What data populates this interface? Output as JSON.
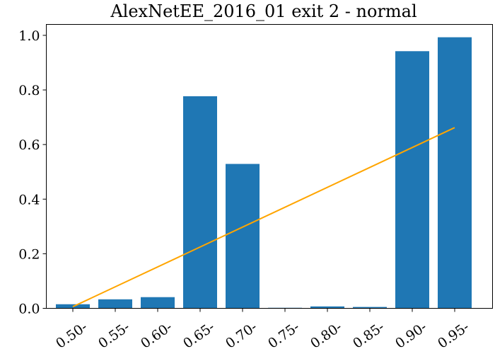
{
  "chart_data": {
    "type": "bar",
    "title": "AlexNetEE_2016_01 exit 2 - normal",
    "xlabel": "",
    "ylabel": "",
    "categories": [
      "0.50-",
      "0.55-",
      "0.60-",
      "0.65-",
      "0.70-",
      "0.75-",
      "0.80-",
      "0.85-",
      "0.90-",
      "0.95-"
    ],
    "values": [
      0.015,
      0.033,
      0.041,
      0.777,
      0.529,
      0.002,
      0.007,
      0.005,
      0.942,
      0.993
    ],
    "yticks": [
      "0.0",
      "0.2",
      "0.4",
      "0.6",
      "0.8",
      "1.0"
    ],
    "ylim": [
      0,
      1.04
    ],
    "grid": false,
    "trendline": {
      "start": 0.006,
      "end": 0.662
    },
    "colors": {
      "bar": "#1f77b4",
      "trendline": "#ffa500"
    }
  }
}
